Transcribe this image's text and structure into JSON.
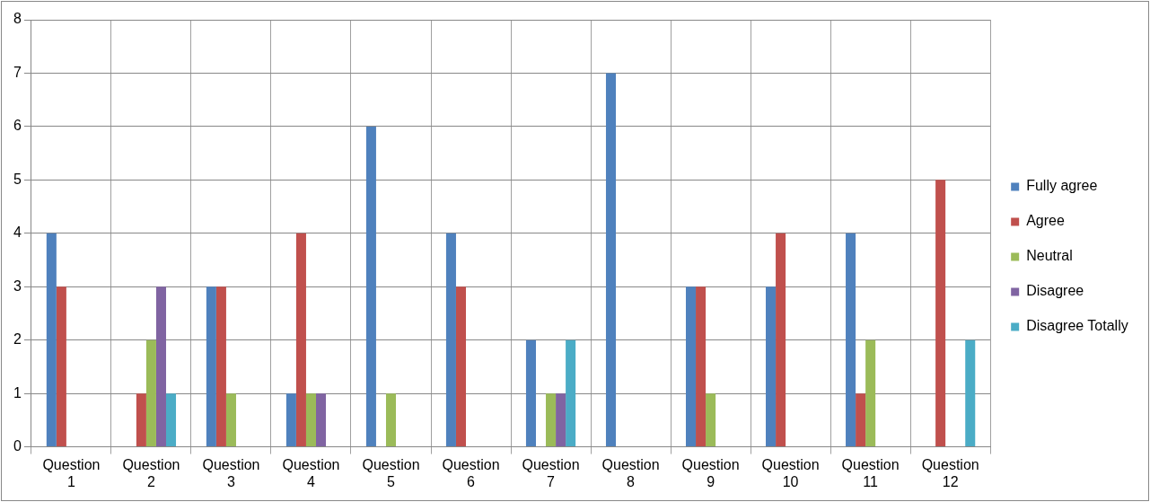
{
  "chart_data": {
    "type": "bar",
    "categories": [
      "Question 1",
      "Question 2",
      "Question 3",
      "Question 4",
      "Question 5",
      "Question 6",
      "Question 7",
      "Question 8",
      "Question 9",
      "Question 10",
      "Question 11",
      "Question 12"
    ],
    "series": [
      {
        "name": "Fully agree",
        "color": "#4f81bd",
        "values": [
          4,
          0,
          3,
          1,
          6,
          4,
          2,
          7,
          3,
          3,
          4,
          0
        ]
      },
      {
        "name": "Agree",
        "color": "#c0504d",
        "values": [
          3,
          1,
          3,
          4,
          0,
          3,
          0,
          0,
          3,
          4,
          1,
          5
        ]
      },
      {
        "name": "Neutral",
        "color": "#9bbb59",
        "values": [
          0,
          2,
          1,
          1,
          1,
          0,
          1,
          0,
          1,
          0,
          2,
          0
        ]
      },
      {
        "name": "Disagree",
        "color": "#8064a2",
        "values": [
          0,
          3,
          0,
          1,
          0,
          0,
          1,
          0,
          0,
          0,
          0,
          0
        ]
      },
      {
        "name": "Disagree Totally",
        "color": "#4bacc6",
        "values": [
          0,
          1,
          0,
          0,
          0,
          0,
          2,
          0,
          0,
          0,
          0,
          2
        ]
      }
    ],
    "ylim": [
      0,
      8
    ],
    "yticks": [
      0,
      1,
      2,
      3,
      4,
      5,
      6,
      7,
      8
    ],
    "grid": true,
    "legend": "right"
  }
}
